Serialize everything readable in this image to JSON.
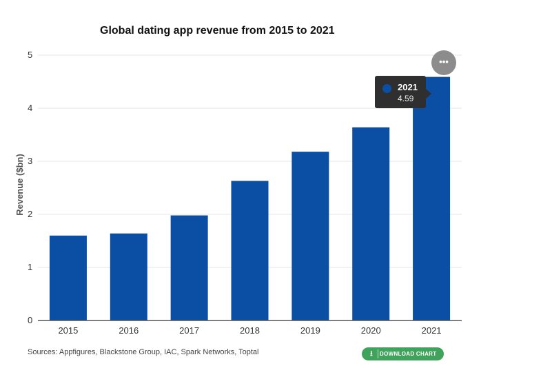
{
  "chart_data": {
    "type": "bar",
    "title": "Global dating app revenue from 2015 to 2021",
    "xlabel": "",
    "ylabel": "Revenue ($bn)",
    "categories": [
      "2015",
      "2016",
      "2017",
      "2018",
      "2019",
      "2020",
      "2021"
    ],
    "values": [
      1.6,
      1.64,
      1.98,
      2.63,
      3.18,
      3.64,
      4.59
    ],
    "ylim": [
      0,
      5
    ],
    "yticks": [
      "0",
      "1",
      "2",
      "3",
      "4",
      "5"
    ],
    "bar_color": "#0a4fa3",
    "grid": true,
    "legend": "none"
  },
  "tooltip": {
    "year": "2021",
    "value": "4.59"
  },
  "menu": {
    "icon": "more-horizontal-icon",
    "label": "•••"
  },
  "footer": {
    "sources": "Sources: Appfigures, Blackstone Group, IAC, Spark Networks, Toptal",
    "download_label": "DOWNLOAD CHART",
    "download_icon": "download-icon",
    "download_color": "#3fa35b"
  }
}
